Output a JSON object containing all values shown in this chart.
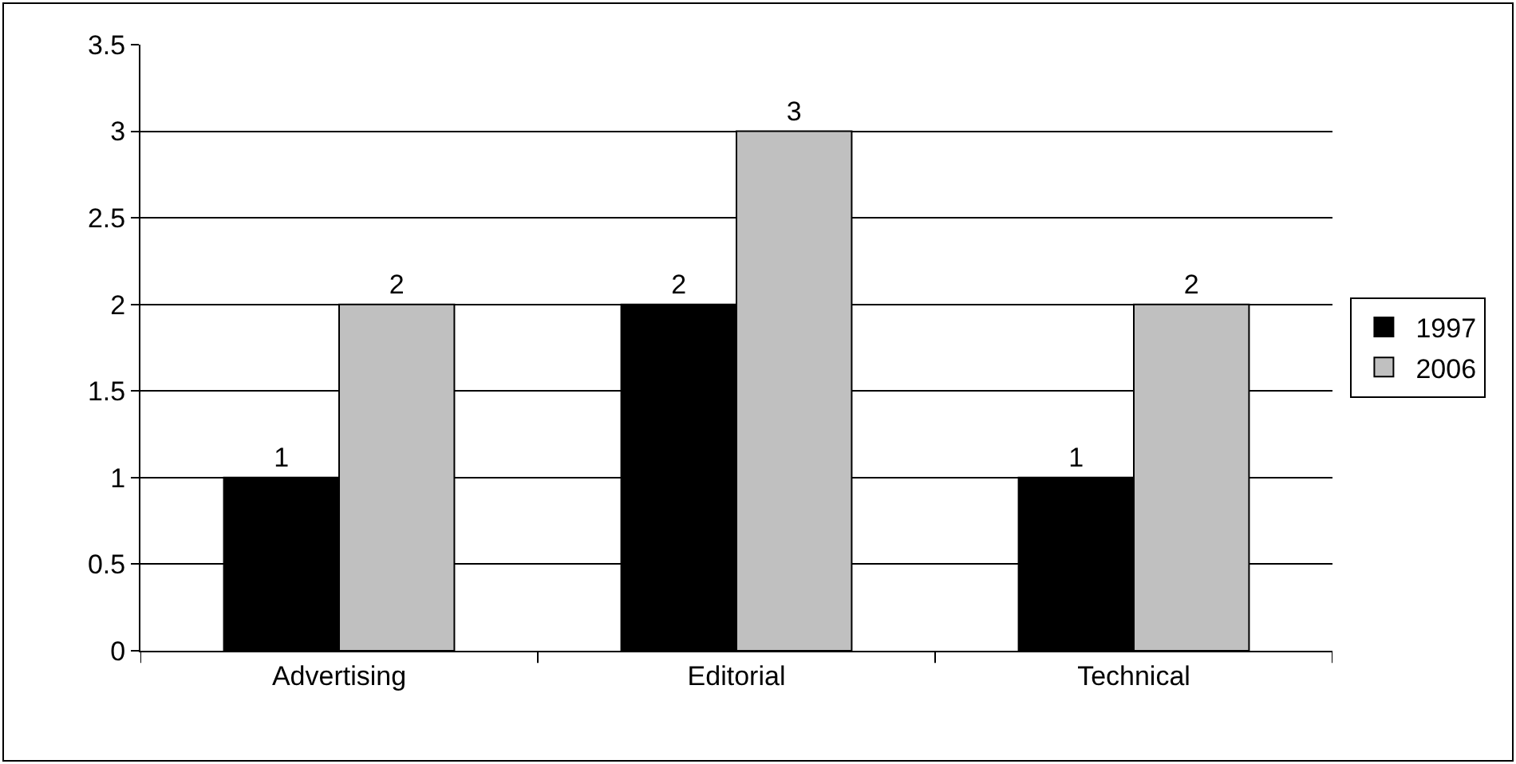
{
  "chart_data": {
    "type": "bar",
    "categories": [
      "Advertising",
      "Editorial",
      "Technical"
    ],
    "series": [
      {
        "name": "1997",
        "color": "#000000",
        "values": [
          1,
          2,
          1
        ]
      },
      {
        "name": "2006",
        "color": "#c0c0c0",
        "values": [
          2,
          3,
          2
        ]
      }
    ],
    "ylim": [
      0,
      3.5
    ],
    "yticks": [
      0,
      0.5,
      1,
      1.5,
      2,
      2.5,
      3,
      3.5
    ],
    "grid": "y",
    "legend": "right",
    "data_labels": true
  }
}
